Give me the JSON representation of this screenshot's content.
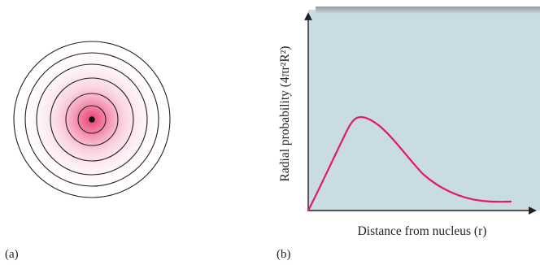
{
  "panels": {
    "a": {
      "label": "(a)"
    },
    "b": {
      "label": "(b)"
    }
  },
  "graph": {
    "y_axis_label": "Radial probability (4πr²R²)",
    "x_axis_label": "Distance from nucleus (r)",
    "curve_color": "#e4186a",
    "plot_background": "#c9dbe3"
  },
  "orbital": {
    "ring_count": 6,
    "glow_color": "#e8336e",
    "nucleus_color": "#111111"
  }
}
